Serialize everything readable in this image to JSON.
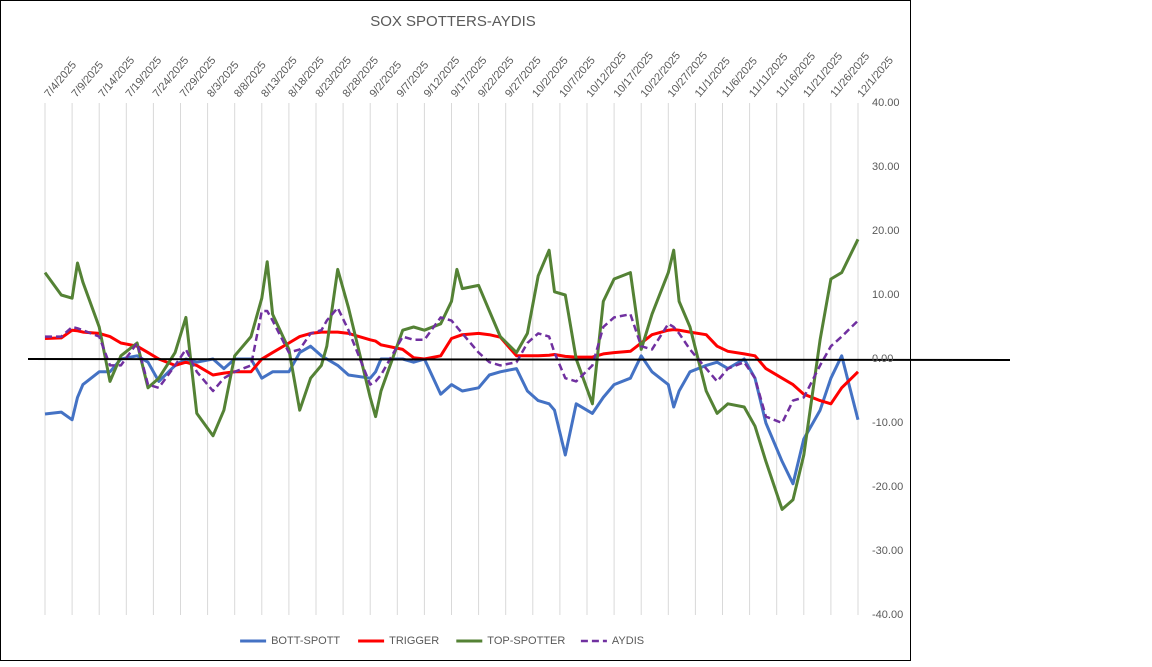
{
  "chart_data": {
    "type": "line",
    "title": "SOX SPOTTERS-AYDIS",
    "x": [
      "7/4/2025",
      "7/7/2025",
      "7/9/2025",
      "7/10/2025",
      "7/11/2025",
      "7/14/2025",
      "7/16/2025",
      "7/18/2025",
      "7/21/2025",
      "7/23/2025",
      "7/25/2025",
      "7/28/2025",
      "7/30/2025",
      "8/1/2025",
      "8/4/2025",
      "8/6/2025",
      "8/8/2025",
      "8/11/2025",
      "8/13/2025",
      "8/14/2025",
      "8/15/2025",
      "8/18/2025",
      "8/20/2025",
      "8/22/2025",
      "8/24/2025",
      "8/25/2025",
      "8/27/2025",
      "8/29/2025",
      "9/2/2025",
      "9/3/2025",
      "9/4/2025",
      "9/8/2025",
      "9/10/2025",
      "9/12/2025",
      "9/15/2025",
      "9/17/2025",
      "9/18/2025",
      "9/19/2025",
      "9/22/2025",
      "9/24/2025",
      "9/26/2025",
      "9/29/2025",
      "10/1/2025",
      "10/3/2025",
      "10/5/2025",
      "10/6/2025",
      "10/8/2025",
      "10/10/2025",
      "10/13/2025",
      "10/15/2025",
      "10/17/2025",
      "10/20/2025",
      "10/22/2025",
      "10/24/2025",
      "10/27/2025",
      "10/28/2025",
      "10/29/2025",
      "10/31/2025",
      "11/3/2025",
      "11/5/2025",
      "11/7/2025",
      "11/10/2025",
      "11/12/2025",
      "11/14/2025",
      "11/17/2025",
      "11/19/2025",
      "11/21/2025",
      "11/24/2025",
      "11/26/2025",
      "11/28/2025",
      "12/1/2025"
    ],
    "series": [
      {
        "name": "BOTT-SPOTT",
        "color": "#4472c4",
        "dash": false,
        "values": [
          -8.6,
          -8.3,
          -9.5,
          -6,
          -4,
          -2,
          -2,
          0,
          0.5,
          -0.5,
          -3.5,
          -1,
          0,
          -0.5,
          0,
          -1.5,
          0,
          0,
          -3,
          -2.5,
          -2,
          -2,
          1,
          2,
          0.5,
          0,
          -1,
          -2.5,
          -3,
          -2,
          0,
          0,
          -0.5,
          0,
          -5.5,
          -4,
          -4.5,
          -5,
          -4.5,
          -2.5,
          -2,
          -1.5,
          -5,
          -6.5,
          -7,
          -8,
          -15,
          -7,
          -8.5,
          -6,
          -4,
          -3,
          0.5,
          -2,
          -4,
          -7.5,
          -5,
          -2,
          -1,
          -0.5,
          -1.5,
          0,
          -3,
          -10,
          -16,
          -19.5,
          -12.5,
          -8,
          -3,
          0.5,
          -9.5
        ]
      },
      {
        "name": "TRIGGER",
        "color": "#ff0000",
        "dash": false,
        "values": [
          3.2,
          3.3,
          4.5,
          4.4,
          4.2,
          4,
          3.5,
          2.5,
          2,
          1,
          0,
          -1,
          -0.5,
          -1,
          -2.5,
          -2.2,
          -2,
          -2,
          0,
          0.5,
          1,
          2.5,
          3.5,
          4,
          4.2,
          4.2,
          4.2,
          4,
          3,
          2.8,
          2.2,
          1.5,
          0.2,
          0,
          0.5,
          3.2,
          3.5,
          3.8,
          4,
          3.8,
          3.4,
          0.5,
          0.5,
          0.5,
          0.6,
          0.7,
          0.4,
          0.3,
          0.3,
          0.8,
          1,
          1.2,
          2.5,
          3.8,
          4.5,
          4.6,
          4.5,
          4.2,
          3.8,
          2,
          1.2,
          0.8,
          0.5,
          -1.5,
          -3,
          -4,
          -5.5,
          -6.5,
          -7,
          -4.5,
          -2
        ]
      },
      {
        "name": "TOP-SPOTTER",
        "color": "#548235",
        "dash": false,
        "values": [
          13.5,
          10,
          9.5,
          15,
          12,
          5,
          -3.5,
          0.5,
          2.5,
          -4.5,
          -3,
          1,
          6.5,
          -8.5,
          -12,
          -8,
          0.5,
          3.5,
          9.5,
          15.2,
          7,
          1.5,
          -8,
          -3,
          -1,
          2,
          14,
          8,
          -6,
          -9,
          -5,
          4.5,
          5,
          4.5,
          5.5,
          9,
          14,
          11,
          11.5,
          7.5,
          3.5,
          1,
          4,
          13,
          17,
          10.5,
          10,
          0,
          -7,
          9,
          12.5,
          13.5,
          1.5,
          7,
          13.5,
          17,
          9,
          5,
          -5,
          -8.5,
          -7,
          -7.5,
          -10.5,
          -16,
          -23.5,
          -22,
          -15,
          3,
          12.5,
          13.5,
          18.7
        ]
      },
      {
        "name": "AYDIS",
        "color": "#7030a0",
        "dash": true,
        "values": [
          3.5,
          3.5,
          5,
          4.8,
          4.5,
          3.5,
          -1,
          -1,
          2.5,
          -4,
          -4.5,
          -1,
          1.5,
          -2,
          -5,
          -3,
          -2,
          -1,
          7.5,
          7.5,
          6,
          1,
          1.5,
          4,
          4.5,
          6,
          8,
          4.5,
          -4,
          -3.5,
          -2.5,
          3.5,
          3,
          3,
          6.5,
          6,
          5,
          4,
          1,
          -0.5,
          -1,
          -0.5,
          2.5,
          4,
          3.5,
          1,
          -3,
          -3.5,
          -1,
          5,
          6.5,
          7,
          2,
          1.5,
          5.5,
          5,
          4,
          1.5,
          -1.5,
          -3.5,
          -1.5,
          -0.5,
          -3,
          -9,
          -10,
          -6.5,
          -6,
          -1,
          2,
          3.5,
          6
        ]
      }
    ],
    "xlim": [
      "7/4/2025",
      "12/1/2025"
    ],
    "xticks": [
      "7/4/2025",
      "7/9/2025",
      "7/14/2025",
      "7/19/2025",
      "7/24/2025",
      "7/29/2025",
      "8/3/2025",
      "8/8/2025",
      "8/13/2025",
      "8/18/2025",
      "8/23/2025",
      "8/28/2025",
      "9/2/2025",
      "9/7/2025",
      "9/12/2025",
      "9/17/2025",
      "9/22/2025",
      "9/27/2025",
      "10/2/2025",
      "10/7/2025",
      "10/12/2025",
      "10/17/2025",
      "10/22/2025",
      "10/27/2025",
      "11/1/2025",
      "11/6/2025",
      "11/11/2025",
      "11/16/2025",
      "11/21/2025",
      "11/26/2025",
      "12/1/2025"
    ],
    "ylim": [
      -40,
      40
    ],
    "yticks": [
      {
        "value": 40,
        "label": "40.00"
      },
      {
        "value": 30,
        "label": "30.00"
      },
      {
        "value": 20,
        "label": "20.00"
      },
      {
        "value": 10,
        "label": "10.00"
      },
      {
        "value": 0,
        "label": "0.00"
      },
      {
        "value": -10,
        "label": "-10.00"
      },
      {
        "value": -20,
        "label": "-20.00"
      },
      {
        "value": -30,
        "label": "-30.00"
      },
      {
        "value": -40,
        "label": "-40.00"
      }
    ],
    "grid": "x",
    "legend": "bottom"
  }
}
